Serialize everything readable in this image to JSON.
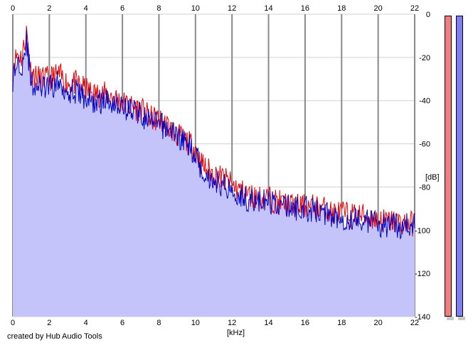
{
  "app": {
    "credit": "created by Hub Audio Tools"
  },
  "colors": {
    "background": "#ffffff",
    "fill": "#c4c4fb",
    "left_channel": "#e80000",
    "right_channel": "#0000c8",
    "grid_major": "#8a8a8a",
    "grid_minor": "#d0d0d0",
    "meter_left": "#ef7f7f",
    "meter_right": "#7f7fef"
  },
  "chart_data": {
    "type": "area",
    "title": "",
    "xlabel": "[kHz]",
    "ylabel": "[dB]",
    "xlim": [
      0,
      22
    ],
    "ylim": [
      -140,
      0
    ],
    "x_ticks": [
      "0",
      "2",
      "4",
      "6",
      "8",
      "10",
      "12",
      "14",
      "16",
      "18",
      "20",
      "22"
    ],
    "y_ticks": [
      "0",
      "-20",
      "-40",
      "-60",
      "-80",
      "-100",
      "-120",
      "-140"
    ],
    "grid": true,
    "x": [
      0,
      0.25,
      0.5,
      0.75,
      1,
      1.5,
      2,
      2.5,
      3,
      3.5,
      4,
      4.5,
      5,
      5.5,
      6,
      6.5,
      7,
      7.5,
      8,
      8.5,
      9,
      9.5,
      10,
      10.25,
      10.5,
      11,
      11.5,
      12,
      12.5,
      13,
      13.5,
      14,
      14.5,
      15,
      15.5,
      16,
      16.5,
      17,
      17.5,
      18,
      18.5,
      19,
      19.5,
      20,
      20.5,
      21,
      21.5,
      22
    ],
    "series": [
      {
        "values": [
          -25,
          -18,
          -20,
          -8,
          -27,
          -30,
          -30,
          -28,
          -32,
          -32,
          -35,
          -37,
          -37,
          -38,
          -41,
          -43,
          -44,
          -48,
          -49,
          -52,
          -56,
          -59,
          -62,
          -68,
          -71,
          -74,
          -76,
          -79,
          -82,
          -84,
          -85,
          -85,
          -87,
          -88,
          -89,
          -89,
          -89,
          -90,
          -92,
          -92,
          -93,
          -93,
          -94,
          -95,
          -96,
          -96,
          -97,
          -97
        ]
      },
      {
        "values": [
          -30,
          -22,
          -23,
          -12,
          -32,
          -34,
          -34,
          -32,
          -35,
          -36,
          -39,
          -41,
          -40,
          -40,
          -43,
          -44,
          -46,
          -50,
          -51,
          -53,
          -56,
          -60,
          -64,
          -70,
          -74,
          -77,
          -79,
          -81,
          -84,
          -86,
          -87,
          -87,
          -88,
          -89,
          -90,
          -90,
          -91,
          -92,
          -93,
          -94,
          -95,
          -95,
          -96,
          -97,
          -98,
          -98,
          -98,
          -98
        ]
      }
    ]
  }
}
